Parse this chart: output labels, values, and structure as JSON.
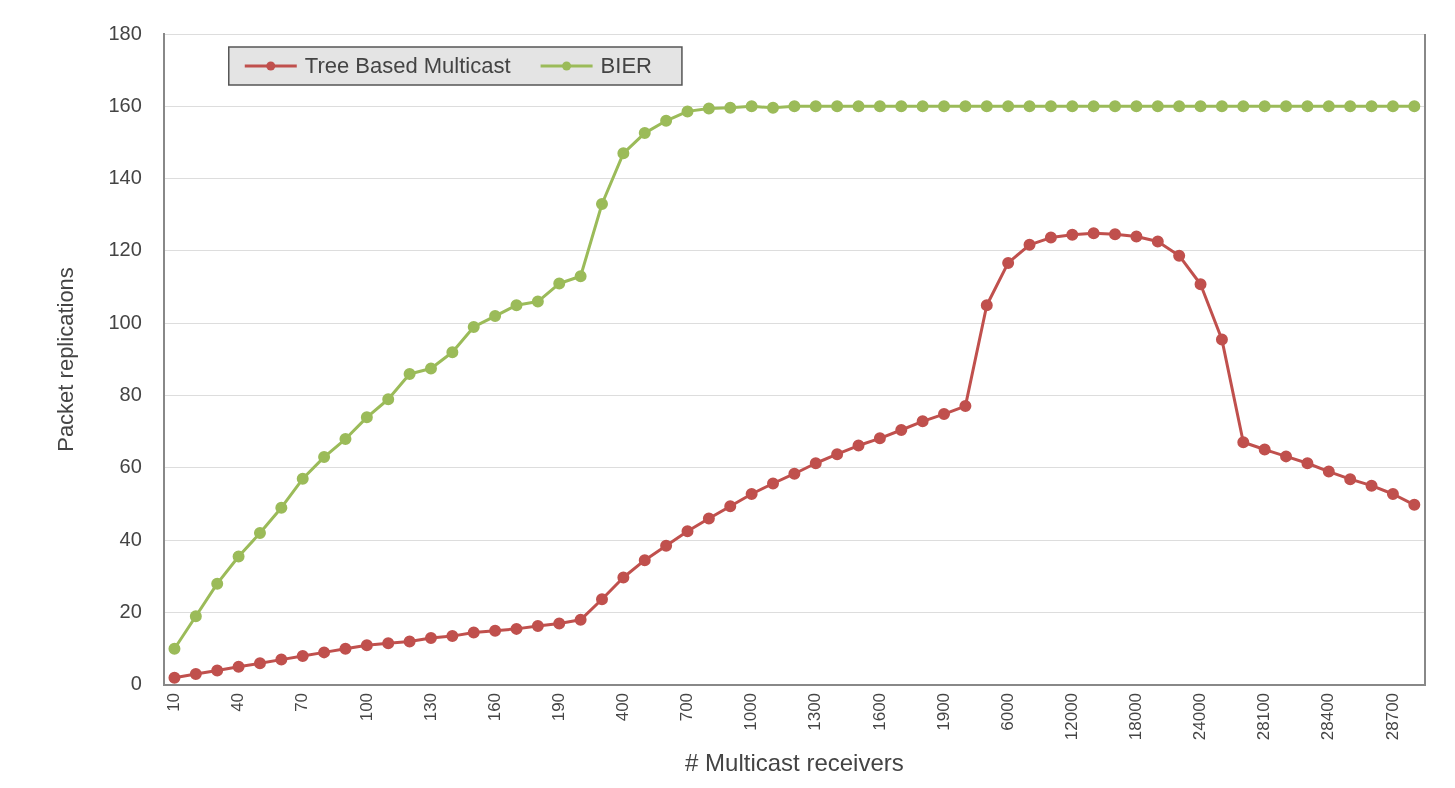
{
  "chart_data": {
    "type": "line",
    "xlabel": "# Multicast receivers",
    "ylabel": "Packet replications",
    "categories": [
      "10",
      null,
      null,
      "40",
      null,
      null,
      "70",
      null,
      null,
      "100",
      null,
      null,
      "130",
      null,
      null,
      "160",
      null,
      null,
      "190",
      null,
      null,
      "400",
      null,
      null,
      "700",
      null,
      null,
      "1000",
      null,
      null,
      "1300",
      null,
      null,
      "1600",
      null,
      null,
      "1900",
      null,
      null,
      "6000",
      null,
      null,
      "12000",
      null,
      null,
      "18000",
      null,
      null,
      "24000",
      null,
      null,
      "28100",
      null,
      null,
      "28400",
      null,
      null,
      "28700",
      null
    ],
    "series": [
      {
        "name": "Tree Based Multicast",
        "color": "#c0504d",
        "values": [
          2,
          3,
          4,
          5,
          6,
          7,
          8,
          9,
          10,
          11,
          11.5,
          12,
          13,
          13.5,
          14.5,
          15,
          15.5,
          16.3,
          17,
          18,
          23.7,
          29.7,
          34.5,
          38.5,
          42.5,
          46,
          49.4,
          52.8,
          55.7,
          58.4,
          61.3,
          63.8,
          66.2,
          68.2,
          70.5,
          72.9,
          74.9,
          77.1,
          105,
          116.7,
          121.7,
          123.7,
          124.5,
          124.9,
          124.6,
          124,
          122.6,
          118.7,
          110.8,
          95.5,
          67.1,
          65.1,
          63.2,
          61.3,
          59,
          56.9,
          55.1,
          52.8,
          49.8
        ]
      },
      {
        "name": "BIER",
        "color": "#9bbb59",
        "values": [
          10,
          19,
          28,
          35.5,
          42,
          49,
          57,
          63,
          68,
          74,
          79,
          86,
          87.5,
          92,
          99,
          102,
          105,
          106,
          111,
          113,
          133,
          147,
          152.6,
          156,
          158.6,
          159.4,
          159.6,
          160,
          159.6,
          160,
          160,
          160,
          160,
          160,
          160,
          160,
          160,
          160,
          160,
          160,
          160,
          160,
          160,
          160,
          160,
          160,
          160,
          160,
          160,
          160,
          160,
          160,
          160,
          160,
          160,
          160,
          160,
          160,
          160
        ]
      }
    ],
    "ylim": [
      0,
      180
    ],
    "yticks": [
      0,
      20,
      40,
      60,
      80,
      100,
      120,
      140,
      160,
      180
    ],
    "grid": "y",
    "legend": "top left",
    "marker": "circle",
    "line_style": "solid"
  }
}
